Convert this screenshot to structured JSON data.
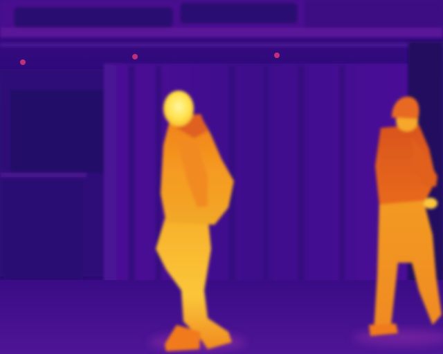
{
  "image": {
    "kind": "thermal-camera-frame",
    "palette": "inferno",
    "subjects": [
      "person-walking-left",
      "person-in-beanie-right"
    ]
  },
  "colors": {
    "cold_dark": "#1e0660",
    "cold": "#2e0b7a",
    "cool": "#4a0f93",
    "mid": "#7a1aa6",
    "warm": "#e0561f",
    "hot": "#f79a1c",
    "hottest": "#ffe14a"
  }
}
